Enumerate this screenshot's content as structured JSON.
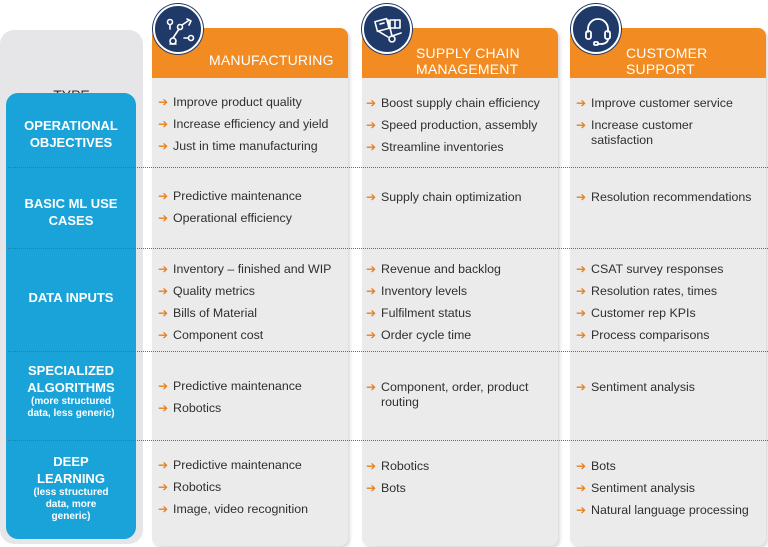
{
  "header": {
    "type_label": "TYPE"
  },
  "columns": [
    {
      "title_lines": [
        "MANUFACTURING"
      ],
      "icon": "robot-arm-icon"
    },
    {
      "title_lines": [
        "SUPPLY CHAIN",
        "MANAGEMENT"
      ],
      "icon": "hand-truck-icon"
    },
    {
      "title_lines": [
        "CUSTOMER",
        "SUPPORT"
      ],
      "icon": "headset-icon"
    }
  ],
  "colors": {
    "accent": "#f28b22",
    "band": "#1aa3d8",
    "icon_bg": "#1f3a68",
    "panel": "#ebebeb"
  },
  "rows": [
    {
      "label_lines": [
        "OPERATIONAL",
        "OBJECTIVES"
      ],
      "sub_lines": [],
      "cells": [
        [
          "Improve product quality",
          "Increase efficiency and yield",
          "Just in time manufacturing"
        ],
        [
          "Boost supply chain efficiency",
          "Speed production, assembly",
          "Streamline inventories"
        ],
        [
          "Improve customer service",
          "Increase customer satisfaction"
        ]
      ]
    },
    {
      "label_lines": [
        "BASIC ML USE",
        "CASES"
      ],
      "sub_lines": [],
      "cells": [
        [
          "Predictive maintenance",
          "Operational efficiency"
        ],
        [
          "Supply chain optimization"
        ],
        [
          "Resolution recommendations"
        ]
      ]
    },
    {
      "label_lines": [
        "DATA INPUTS"
      ],
      "sub_lines": [],
      "cells": [
        [
          "Inventory – finished and WIP",
          "Quality metrics",
          "Bills of Material",
          "Component cost"
        ],
        [
          "Revenue and backlog",
          "Inventory levels",
          "Fulfilment status",
          "Order cycle time"
        ],
        [
          "CSAT survey responses",
          "Resolution rates, times",
          "Customer rep KPIs",
          "Process comparisons"
        ]
      ]
    },
    {
      "label_lines": [
        "SPECIALIZED",
        "ALGORITHMS"
      ],
      "sub_lines": [
        "(more structured",
        "data, less generic)"
      ],
      "cells": [
        [
          "Predictive maintenance",
          "Robotics"
        ],
        [
          "Component, order, product routing"
        ],
        [
          "Sentiment analysis"
        ]
      ]
    },
    {
      "label_lines": [
        "DEEP",
        "LEARNING"
      ],
      "sub_lines": [
        "(less structured",
        "data, more",
        "generic)"
      ],
      "cells": [
        [
          "Predictive maintenance",
          "Robotics",
          "Image, video recognition"
        ],
        [
          "Robotics",
          "Bots"
        ],
        [
          "Bots",
          "Sentiment analysis",
          "Natural language processing"
        ]
      ]
    }
  ]
}
